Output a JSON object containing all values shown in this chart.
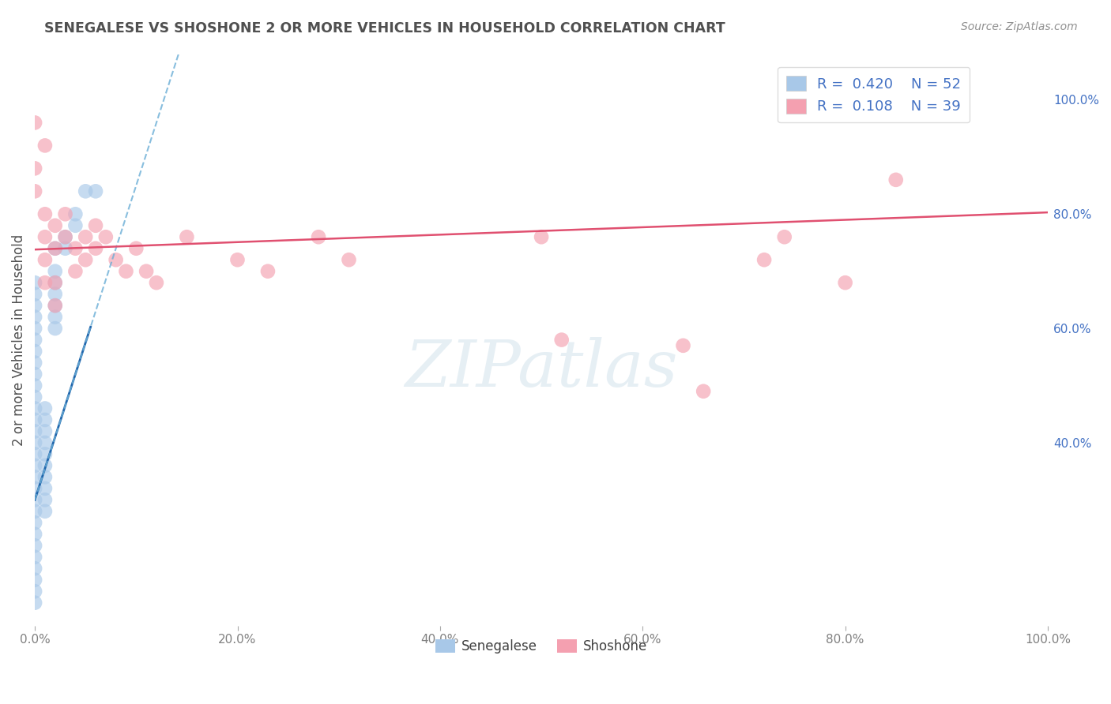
{
  "title": "SENEGALESE VS SHOSHONE 2 OR MORE VEHICLES IN HOUSEHOLD CORRELATION CHART",
  "source": "Source: ZipAtlas.com",
  "ylabel": "2 or more Vehicles in Household",
  "watermark": "ZIPatlas",
  "legend_blue_R": "0.420",
  "legend_blue_N": "52",
  "legend_pink_R": "0.108",
  "legend_pink_N": "39",
  "blue_color": "#a8c8e8",
  "pink_color": "#f4a0b0",
  "blue_line_solid_color": "#2166ac",
  "blue_line_dash_color": "#6baed6",
  "pink_line_color": "#e05070",
  "blue_scatter": [
    [
      0.0,
      0.52
    ],
    [
      0.0,
      0.48
    ],
    [
      0.0,
      0.46
    ],
    [
      0.0,
      0.44
    ],
    [
      0.0,
      0.42
    ],
    [
      0.0,
      0.4
    ],
    [
      0.0,
      0.38
    ],
    [
      0.0,
      0.36
    ],
    [
      0.0,
      0.34
    ],
    [
      0.0,
      0.32
    ],
    [
      0.0,
      0.3
    ],
    [
      0.0,
      0.28
    ],
    [
      0.0,
      0.26
    ],
    [
      0.0,
      0.5
    ],
    [
      0.0,
      0.56
    ],
    [
      0.0,
      0.58
    ],
    [
      0.0,
      0.6
    ],
    [
      0.0,
      0.62
    ],
    [
      0.01,
      0.46
    ],
    [
      0.01,
      0.44
    ],
    [
      0.01,
      0.42
    ],
    [
      0.01,
      0.4
    ],
    [
      0.01,
      0.38
    ],
    [
      0.01,
      0.36
    ],
    [
      0.01,
      0.34
    ],
    [
      0.02,
      0.74
    ],
    [
      0.02,
      0.7
    ],
    [
      0.02,
      0.68
    ],
    [
      0.02,
      0.66
    ],
    [
      0.02,
      0.64
    ],
    [
      0.02,
      0.62
    ],
    [
      0.02,
      0.6
    ],
    [
      0.03,
      0.76
    ],
    [
      0.03,
      0.74
    ],
    [
      0.04,
      0.8
    ],
    [
      0.04,
      0.78
    ],
    [
      0.05,
      0.84
    ],
    [
      0.06,
      0.84
    ],
    [
      0.0,
      0.2
    ],
    [
      0.0,
      0.18
    ],
    [
      0.0,
      0.22
    ],
    [
      0.0,
      0.24
    ],
    [
      0.0,
      0.16
    ],
    [
      0.0,
      0.14
    ],
    [
      0.0,
      0.12
    ],
    [
      0.0,
      0.54
    ],
    [
      0.0,
      0.64
    ],
    [
      0.01,
      0.32
    ],
    [
      0.01,
      0.3
    ],
    [
      0.01,
      0.28
    ],
    [
      0.0,
      0.66
    ],
    [
      0.0,
      0.68
    ]
  ],
  "pink_scatter": [
    [
      0.0,
      0.96
    ],
    [
      0.0,
      0.88
    ],
    [
      0.0,
      0.84
    ],
    [
      0.01,
      0.92
    ],
    [
      0.01,
      0.8
    ],
    [
      0.01,
      0.76
    ],
    [
      0.01,
      0.72
    ],
    [
      0.01,
      0.68
    ],
    [
      0.02,
      0.78
    ],
    [
      0.02,
      0.74
    ],
    [
      0.02,
      0.68
    ],
    [
      0.02,
      0.64
    ],
    [
      0.03,
      0.8
    ],
    [
      0.03,
      0.76
    ],
    [
      0.04,
      0.74
    ],
    [
      0.04,
      0.7
    ],
    [
      0.05,
      0.76
    ],
    [
      0.05,
      0.72
    ],
    [
      0.06,
      0.78
    ],
    [
      0.06,
      0.74
    ],
    [
      0.07,
      0.76
    ],
    [
      0.08,
      0.72
    ],
    [
      0.09,
      0.7
    ],
    [
      0.1,
      0.74
    ],
    [
      0.11,
      0.7
    ],
    [
      0.12,
      0.68
    ],
    [
      0.15,
      0.76
    ],
    [
      0.2,
      0.72
    ],
    [
      0.23,
      0.7
    ],
    [
      0.28,
      0.76
    ],
    [
      0.31,
      0.72
    ],
    [
      0.5,
      0.76
    ],
    [
      0.52,
      0.58
    ],
    [
      0.64,
      0.57
    ],
    [
      0.66,
      0.49
    ],
    [
      0.72,
      0.72
    ],
    [
      0.74,
      0.76
    ],
    [
      0.8,
      0.68
    ],
    [
      0.85,
      0.86
    ]
  ],
  "xmin": 0.0,
  "xmax": 1.0,
  "ymin": 0.08,
  "ymax": 1.08,
  "xticks": [
    0.0,
    0.2,
    0.4,
    0.6,
    0.8,
    1.0
  ],
  "xtick_labels": [
    "0.0%",
    "20.0%",
    "40.0%",
    "60.0%",
    "80.0%",
    "100.0%"
  ],
  "ytick_right": [
    0.4,
    0.6,
    0.8,
    1.0
  ],
  "ytick_right_labels": [
    "40.0%",
    "60.0%",
    "80.0%",
    "100.0%"
  ],
  "grid_color": "#c8c8c8",
  "bg_color": "#ffffff",
  "title_color": "#505050",
  "axis_label_color": "#505050",
  "tick_color": "#808080",
  "source_color": "#909090"
}
